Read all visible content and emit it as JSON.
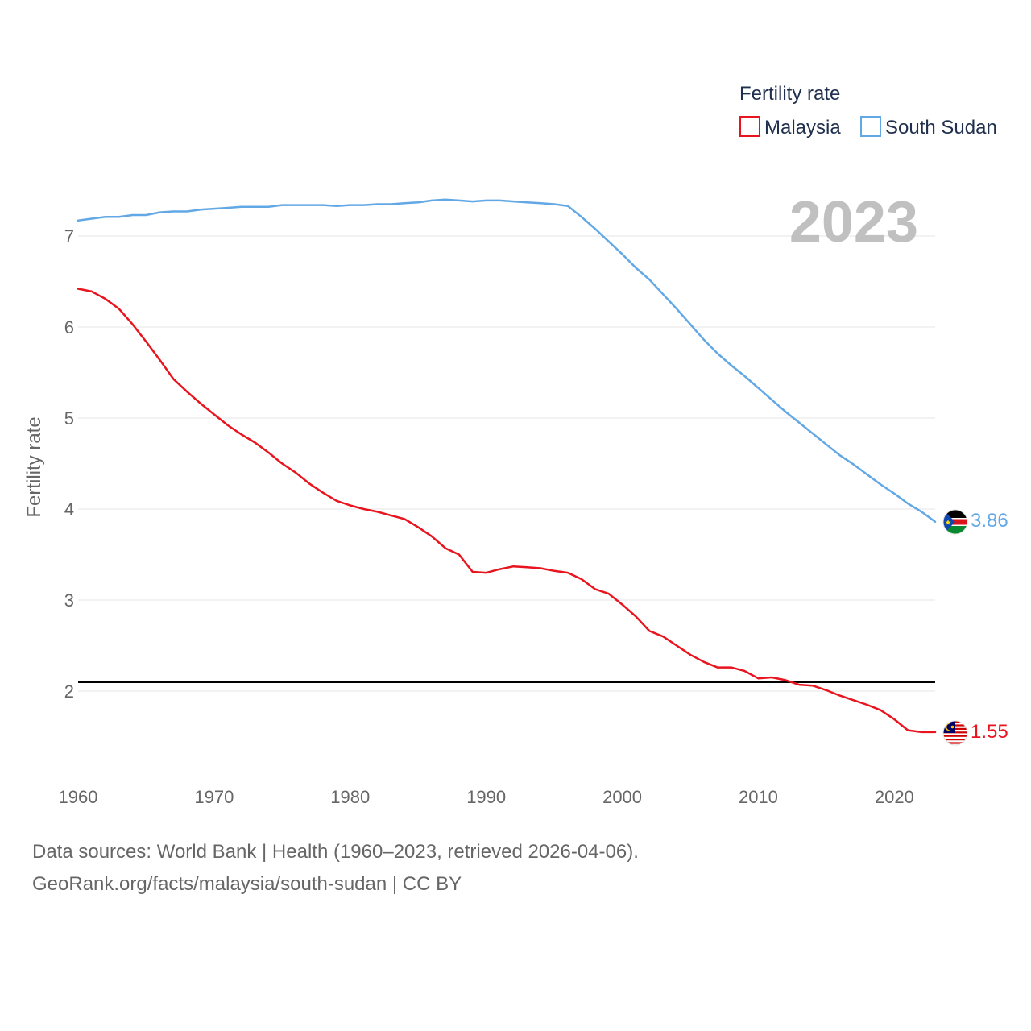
{
  "chart_data": {
    "type": "line",
    "title": "2023",
    "xlabel": "",
    "ylabel": "Fertility rate",
    "xlim": [
      1960,
      2023
    ],
    "ylim": [
      1.0,
      7.6
    ],
    "x_ticks": [
      1960,
      1970,
      1980,
      1990,
      2000,
      2010,
      2020
    ],
    "y_ticks": [
      2,
      3,
      4,
      5,
      6,
      7
    ],
    "grid": true,
    "legend": {
      "title": "Fertility rate",
      "placement": "top-right"
    },
    "reference_line": {
      "y": 2.1
    },
    "x": [
      1960,
      1961,
      1962,
      1963,
      1964,
      1965,
      1966,
      1967,
      1968,
      1969,
      1970,
      1971,
      1972,
      1973,
      1974,
      1975,
      1976,
      1977,
      1978,
      1979,
      1980,
      1981,
      1982,
      1983,
      1984,
      1985,
      1986,
      1987,
      1988,
      1989,
      1990,
      1991,
      1992,
      1993,
      1994,
      1995,
      1996,
      1997,
      1998,
      1999,
      2000,
      2001,
      2002,
      2003,
      2004,
      2005,
      2006,
      2007,
      2008,
      2009,
      2010,
      2011,
      2012,
      2013,
      2014,
      2015,
      2016,
      2017,
      2018,
      2019,
      2020,
      2021,
      2022,
      2023
    ],
    "series": [
      {
        "name": "Malaysia",
        "color": "#e8141e",
        "end_label": "1.55",
        "values": [
          6.42,
          6.39,
          6.31,
          6.2,
          6.03,
          5.84,
          5.64,
          5.43,
          5.29,
          5.16,
          5.04,
          4.92,
          4.82,
          4.73,
          4.62,
          4.5,
          4.4,
          4.28,
          4.18,
          4.09,
          4.04,
          4.0,
          3.97,
          3.93,
          3.89,
          3.8,
          3.7,
          3.57,
          3.5,
          3.31,
          3.3,
          3.34,
          3.37,
          3.36,
          3.35,
          3.32,
          3.3,
          3.23,
          3.12,
          3.07,
          2.95,
          2.82,
          2.66,
          2.6,
          2.5,
          2.4,
          2.32,
          2.26,
          2.26,
          2.22,
          2.14,
          2.15,
          2.12,
          2.07,
          2.06,
          2.01,
          1.95,
          1.9,
          1.85,
          1.79,
          1.69,
          1.57,
          1.55,
          1.55
        ]
      },
      {
        "name": "South Sudan",
        "color": "#62a8e5",
        "end_label": "3.86",
        "values": [
          7.17,
          7.19,
          7.21,
          7.21,
          7.23,
          7.23,
          7.26,
          7.27,
          7.27,
          7.29,
          7.3,
          7.31,
          7.32,
          7.32,
          7.32,
          7.34,
          7.34,
          7.34,
          7.34,
          7.33,
          7.34,
          7.34,
          7.35,
          7.35,
          7.36,
          7.37,
          7.39,
          7.4,
          7.39,
          7.38,
          7.39,
          7.39,
          7.38,
          7.37,
          7.36,
          7.35,
          7.33,
          7.21,
          7.08,
          6.94,
          6.8,
          6.65,
          6.52,
          6.36,
          6.2,
          6.03,
          5.86,
          5.71,
          5.58,
          5.46,
          5.33,
          5.2,
          5.07,
          4.95,
          4.83,
          4.71,
          4.59,
          4.49,
          4.38,
          4.27,
          4.17,
          4.06,
          3.97,
          3.86
        ]
      }
    ]
  },
  "footer": {
    "source": "Data sources: World Bank | Health (1960–2023, retrieved 2026-04-06).",
    "attribution": "GeoRank.org/facts/malaysia/south-sudan | CC BY"
  }
}
